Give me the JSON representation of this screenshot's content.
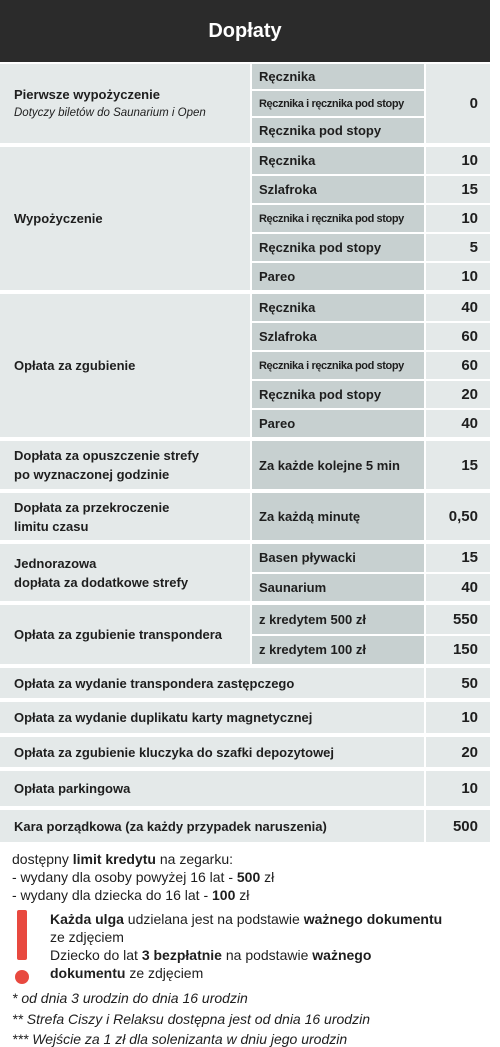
{
  "header": {
    "title": "Dopłaty"
  },
  "table": {
    "groups": [
      {
        "label": [
          "Pierwsze wypożyczenie"
        ],
        "note": "Dotyczy biletów do Saunarium i Open",
        "items": [
          "Ręcznika",
          "Ręcznika i ręcznika pod stopy",
          "Ręcznika pod stopy"
        ],
        "value": 0
      },
      {
        "label": [
          "Wypożyczenie"
        ],
        "items": [
          {
            "name": "Ręcznika",
            "value": 10
          },
          {
            "name": "Szlafroka",
            "value": 15
          },
          {
            "name": "Ręcznika i ręcznika pod stopy",
            "value": 10
          },
          {
            "name": "Ręcznika pod stopy",
            "value": 5
          },
          {
            "name": "Pareo",
            "value": 10
          }
        ]
      },
      {
        "label": [
          "Opłata za zgubienie"
        ],
        "items": [
          {
            "name": "Ręcznika",
            "value": 40
          },
          {
            "name": "Szlafroka",
            "value": 60
          },
          {
            "name": "Ręcznika i ręcznika pod stopy",
            "value": 60
          },
          {
            "name": "Ręcznika pod stopy",
            "value": 20
          },
          {
            "name": "Pareo",
            "value": 40
          }
        ]
      },
      {
        "label": [
          "Dopłata za opuszczenie strefy",
          "po wyznaczonej godzinie"
        ],
        "items": [
          {
            "name": "Za każde kolejne 5 min",
            "value": 15
          }
        ]
      },
      {
        "label": [
          "Dopłata za przekroczenie",
          "limitu czasu"
        ],
        "items": [
          {
            "name": "Za każdą minutę",
            "value": "0,50"
          }
        ]
      },
      {
        "label": [
          "Jednorazowa",
          "dopłata za dodatkowe strefy"
        ],
        "items": [
          {
            "name": "Basen pływacki",
            "value": 15
          },
          {
            "name": "Saunarium",
            "value": 40
          }
        ]
      },
      {
        "label": [
          "Opłata za zgubienie transpondera"
        ],
        "items": [
          {
            "name": "z kredytem 500 zł",
            "value": 550
          },
          {
            "name": "z kredytem 100 zł",
            "value": 150
          }
        ]
      }
    ],
    "rows": [
      {
        "label": "Opłata za wydanie transpondera zastępczego",
        "value": 50
      },
      {
        "label": "Opłata za wydanie duplikatu karty magnetycznej",
        "value": 10
      },
      {
        "label": "Opłata za zgubienie kluczyka do szafki depozytowej",
        "value": 20
      },
      {
        "label": "Opłata parkingowa",
        "value": 10
      },
      {
        "label": "Kara porządkowa (za każdy przypadek naruszenia)",
        "value": 500
      }
    ]
  },
  "footer": {
    "credit": [
      [
        "dostępny ",
        "limit kredytu",
        " na zegarku:"
      ],
      [
        "- wydany dla osoby powyżej 16 lat - ",
        "500",
        " zł"
      ],
      [
        "- wydany dla dziecka do 16 lat - ",
        "100",
        " zł"
      ]
    ],
    "alerts": [
      [
        "Każda ulga",
        " udzielana jest na podstawie ",
        "ważnego dokumentu",
        " ze zdjęciem"
      ],
      [
        "Dziecko do lat ",
        "3 bezpłatnie",
        " na podstawie ",
        "ważnego dokumentu",
        " ze zdjęciem"
      ]
    ],
    "notes": [
      "* od dnia 3 urodzin do dnia 16 urodzin",
      "** Strefa Ciszy i Relaksu dostępna jest od dnia 16 urodzin",
      "*** Wejście za 1 zł dla solenizanta w dniu jego urodzin"
    ]
  }
}
